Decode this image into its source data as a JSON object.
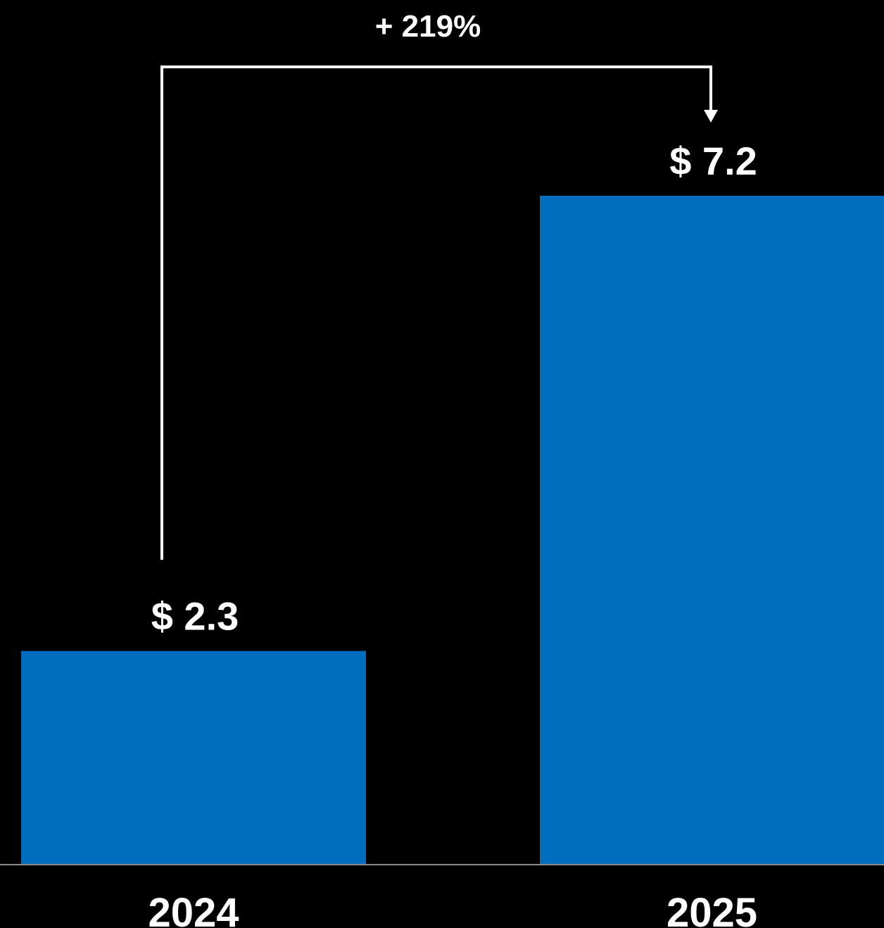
{
  "chart_data": {
    "type": "bar",
    "categories": [
      "2024",
      "2025"
    ],
    "values": [
      2.3,
      7.2
    ],
    "value_labels": [
      "$ 2.3",
      "$ 7.2"
    ],
    "title": "",
    "xlabel": "",
    "ylabel": "",
    "ylim": [
      0,
      7.2
    ],
    "grid": false,
    "bar_color": "#006DBF",
    "background": "#000000",
    "annotation": {
      "text": "+ 219%",
      "from": "2024",
      "to": "2025",
      "style": "bracket-arrow"
    }
  }
}
